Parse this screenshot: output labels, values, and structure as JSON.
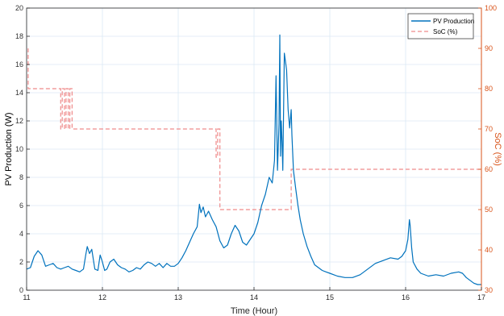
{
  "chart_data": {
    "type": "line",
    "xlabel": "Time (Hour)",
    "ylabel_left": "PV Production (W)",
    "ylabel_right": "SoC (%)",
    "xlim": [
      11,
      17
    ],
    "ylim_left": [
      0,
      20
    ],
    "ylim_right": [
      30,
      100
    ],
    "x_ticks": [
      11,
      12,
      13,
      14,
      15,
      16,
      17
    ],
    "y_ticks_left": [
      0,
      2,
      4,
      6,
      8,
      10,
      12,
      14,
      16,
      18,
      20
    ],
    "y_ticks_right": [
      30,
      40,
      50,
      60,
      70,
      80,
      90,
      100
    ],
    "grid": true,
    "legend_position": "top-right",
    "colors": {
      "pv": "#0072bd",
      "soc": "#d95319",
      "soc_line": "#ef8a8a",
      "grid": "#dbe9f5"
    },
    "series": [
      {
        "name": "PV Production",
        "axis": "left",
        "style": "solid",
        "x": [
          11.0,
          11.05,
          11.1,
          11.15,
          11.2,
          11.25,
          11.3,
          11.35,
          11.4,
          11.45,
          11.5,
          11.55,
          11.6,
          11.65,
          11.7,
          11.75,
          11.78,
          11.8,
          11.83,
          11.86,
          11.9,
          11.94,
          11.97,
          12.0,
          12.03,
          12.06,
          12.1,
          12.15,
          12.2,
          12.25,
          12.3,
          12.35,
          12.4,
          12.45,
          12.5,
          12.55,
          12.6,
          12.65,
          12.7,
          12.75,
          12.8,
          12.85,
          12.9,
          12.95,
          13.0,
          13.05,
          13.1,
          13.15,
          13.2,
          13.25,
          13.28,
          13.3,
          13.33,
          13.36,
          13.4,
          13.45,
          13.5,
          13.55,
          13.6,
          13.65,
          13.7,
          13.75,
          13.8,
          13.85,
          13.9,
          13.95,
          14.0,
          14.05,
          14.1,
          14.15,
          14.2,
          14.24,
          14.27,
          14.29,
          14.31,
          14.33,
          14.34,
          14.35,
          14.36,
          14.37,
          14.38,
          14.4,
          14.42,
          14.43,
          14.45,
          14.47,
          14.49,
          14.5,
          14.52,
          14.55,
          14.58,
          14.61,
          14.65,
          14.7,
          14.75,
          14.8,
          14.85,
          14.9,
          14.95,
          15.0,
          15.1,
          15.2,
          15.3,
          15.4,
          15.5,
          15.6,
          15.7,
          15.8,
          15.9,
          15.95,
          16.0,
          16.03,
          16.05,
          16.06,
          16.08,
          16.1,
          16.15,
          16.2,
          16.3,
          16.4,
          16.5,
          16.6,
          16.7,
          16.75,
          16.8,
          16.85,
          16.9,
          16.95,
          17.0
        ],
        "y": [
          1.5,
          1.6,
          2.4,
          2.8,
          2.5,
          1.7,
          1.8,
          1.9,
          1.6,
          1.5,
          1.6,
          1.7,
          1.5,
          1.4,
          1.3,
          1.5,
          2.5,
          3.1,
          2.6,
          2.9,
          1.5,
          1.4,
          2.5,
          2.0,
          1.4,
          1.5,
          2.0,
          2.2,
          1.8,
          1.6,
          1.5,
          1.3,
          1.4,
          1.6,
          1.5,
          1.8,
          2.0,
          1.9,
          1.7,
          1.9,
          1.6,
          1.9,
          1.7,
          1.7,
          1.9,
          2.3,
          2.8,
          3.4,
          4.0,
          4.5,
          6.1,
          5.5,
          5.9,
          5.2,
          5.6,
          5.0,
          4.5,
          3.5,
          3.0,
          3.2,
          4.0,
          4.6,
          4.2,
          3.4,
          3.2,
          3.6,
          4.0,
          4.8,
          6.0,
          6.8,
          8.0,
          7.6,
          9.2,
          15.2,
          8.5,
          11.8,
          18.1,
          9.5,
          12.0,
          10.5,
          8.5,
          16.8,
          16.0,
          15.6,
          12.8,
          11.5,
          12.8,
          11.0,
          8.5,
          7.2,
          6.0,
          5.0,
          4.0,
          3.1,
          2.4,
          1.8,
          1.6,
          1.4,
          1.3,
          1.2,
          1.0,
          0.9,
          0.9,
          1.1,
          1.5,
          1.9,
          2.1,
          2.3,
          2.2,
          2.4,
          2.8,
          3.6,
          5.0,
          4.6,
          3.0,
          2.0,
          1.5,
          1.2,
          1.0,
          1.1,
          1.0,
          1.2,
          1.3,
          1.2,
          0.9,
          0.7,
          0.5,
          0.4,
          0.4
        ]
      },
      {
        "name": "SoC (%)",
        "axis": "right",
        "style": "dashed",
        "x": [
          11.02,
          11.02,
          11.45,
          11.45,
          11.47,
          11.47,
          11.5,
          11.5,
          11.52,
          11.52,
          11.55,
          11.55,
          11.57,
          11.57,
          11.6,
          11.6,
          13.5,
          13.5,
          13.52,
          13.52,
          13.55,
          13.55,
          14.49,
          14.49,
          17.0
        ],
        "y": [
          90,
          80,
          80,
          70,
          70,
          80,
          80,
          70,
          70,
          80,
          80,
          70,
          70,
          80,
          80,
          70,
          70,
          63,
          63,
          70,
          70,
          50,
          50,
          60,
          60
        ]
      }
    ]
  }
}
